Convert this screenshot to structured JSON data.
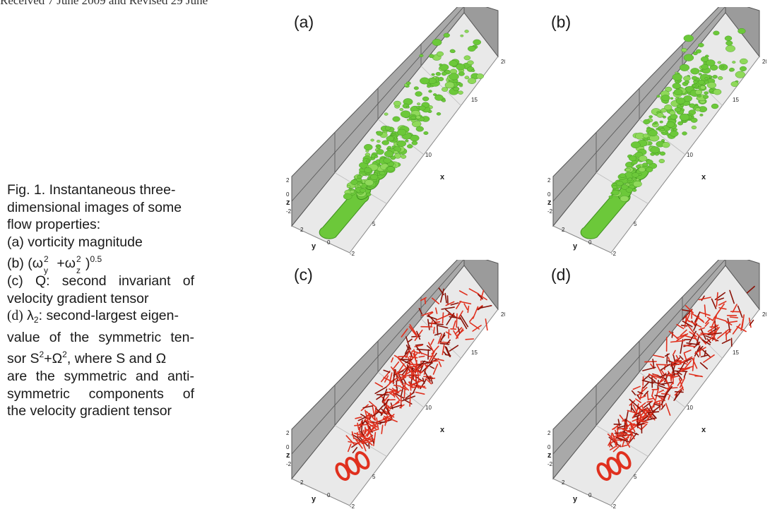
{
  "header": {
    "received_text": "Received 7 June 2009 and Revised 29 June"
  },
  "caption": {
    "line1": "Fig. 1. Instantaneous three-",
    "line2": "dimensional images of some",
    "line3": "flow properties:",
    "item_a": "(a) vorticity magnitude",
    "item_b_prefix": "(b) (ω",
    "item_b_y": "y",
    "item_b_2a": "2",
    "item_b_mid": " +ω",
    "item_b_z": "z",
    "item_b_2b": "2",
    "item_b_close": ")",
    "item_b_exp": "0.5",
    "item_c_1": "(c) Q: second invariant of",
    "item_c_2": "velocity gradient tensor",
    "item_d_label": "(d)",
    "item_d_lambda": " λ",
    "item_d_sub": "2",
    "item_d_1": ": second-largest eigen-",
    "item_d_2": "value of the symmetric ten-",
    "item_d_3a": "sor S",
    "item_d_3sup1": "2",
    "item_d_3b": "+Ω",
    "item_d_3sup2": "2",
    "item_d_3c": ", where S and Ω",
    "item_d_4": "are the symmetric and anti-",
    "item_d_5": "symmetric components of",
    "item_d_6": "the velocity gradient tensor"
  },
  "panels": [
    {
      "label": "(a)",
      "color": "#6cc83a",
      "dark": "#3e8f1e",
      "style": "blob"
    },
    {
      "label": "(b)",
      "color": "#6cc83a",
      "dark": "#3e8f1e",
      "style": "blob"
    },
    {
      "label": "(c)",
      "color": "#e0301e",
      "dark": "#8a1208",
      "style": "ribbon"
    },
    {
      "label": "(d)",
      "color": "#e0301e",
      "dark": "#8a1208",
      "style": "ribbon"
    }
  ],
  "axes": {
    "x_label": "x",
    "y_label": "y",
    "z_label": "z",
    "x_ticks": [
      "5",
      "10",
      "15",
      "20"
    ],
    "y_ticks": [
      "2",
      "0",
      "-2"
    ],
    "z_ticks": [
      "2",
      "0",
      "-2"
    ]
  }
}
